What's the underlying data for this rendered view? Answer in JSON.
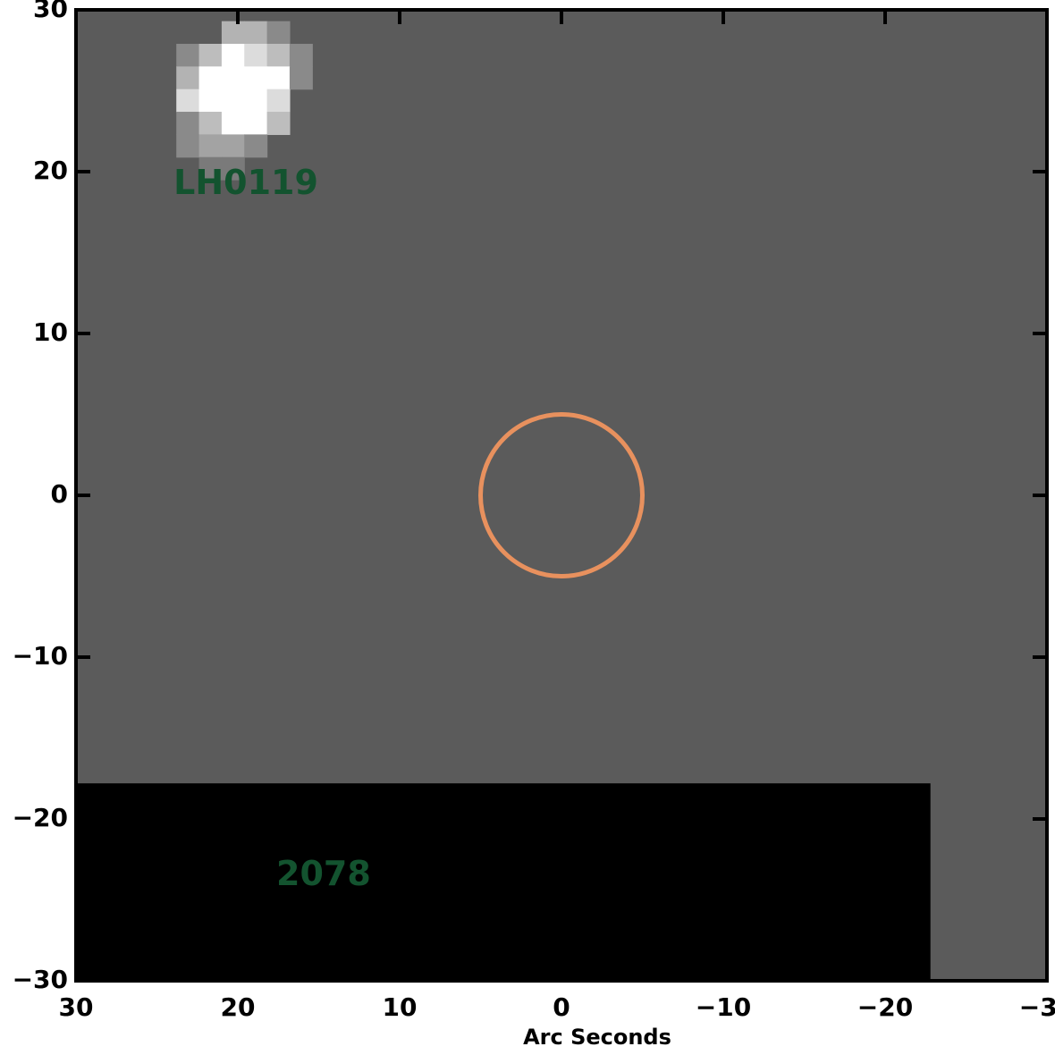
{
  "chart_data": {
    "type": "heatmap",
    "title": "",
    "xlabel": "Arc Seconds",
    "ylabel": "",
    "xlim": [
      30,
      -30
    ],
    "ylim": [
      -30,
      30
    ],
    "x_ticks": [
      30,
      20,
      10,
      0,
      -10,
      -20,
      -30
    ],
    "x_tick_labels": [
      "30",
      "20",
      "10",
      "0",
      "−10",
      "−20",
      "−30"
    ],
    "y_ticks": [
      30,
      20,
      10,
      0,
      -10,
      -20,
      -30
    ],
    "y_tick_labels": [
      "30",
      "20",
      "10",
      "0",
      "−10",
      "−20",
      "−30"
    ],
    "background_value_color": "#5b5b5b",
    "no_data_region": {
      "x": [
        30,
        -22.8
      ],
      "y": [
        -30,
        -17.8
      ],
      "color": "#000000"
    },
    "pixel_size_arcsec": 1.4,
    "source_pixels": [
      {
        "x": 20.3,
        "y": 28.6,
        "color": "#b3b3b3"
      },
      {
        "x": 18.9,
        "y": 28.6,
        "color": "#b3b3b3"
      },
      {
        "x": 17.5,
        "y": 28.6,
        "color": "#8a8a8a"
      },
      {
        "x": 23.1,
        "y": 27.2,
        "color": "#8a8a8a"
      },
      {
        "x": 21.7,
        "y": 27.2,
        "color": "#bdbdbd"
      },
      {
        "x": 20.3,
        "y": 27.2,
        "color": "#ffffff"
      },
      {
        "x": 18.9,
        "y": 27.2,
        "color": "#dcdcdc"
      },
      {
        "x": 17.5,
        "y": 27.2,
        "color": "#bdbdbd"
      },
      {
        "x": 16.1,
        "y": 27.2,
        "color": "#8a8a8a"
      },
      {
        "x": 23.1,
        "y": 25.8,
        "color": "#b3b3b3"
      },
      {
        "x": 21.7,
        "y": 25.8,
        "color": "#ffffff"
      },
      {
        "x": 20.3,
        "y": 25.8,
        "color": "#ffffff"
      },
      {
        "x": 18.9,
        "y": 25.8,
        "color": "#ffffff"
      },
      {
        "x": 17.5,
        "y": 25.8,
        "color": "#ffffff"
      },
      {
        "x": 16.1,
        "y": 25.8,
        "color": "#8a8a8a"
      },
      {
        "x": 23.1,
        "y": 24.4,
        "color": "#dcdcdc"
      },
      {
        "x": 21.7,
        "y": 24.4,
        "color": "#ffffff"
      },
      {
        "x": 20.3,
        "y": 24.4,
        "color": "#ffffff"
      },
      {
        "x": 18.9,
        "y": 24.4,
        "color": "#ffffff"
      },
      {
        "x": 17.5,
        "y": 24.4,
        "color": "#dcdcdc"
      },
      {
        "x": 23.1,
        "y": 23.0,
        "color": "#8a8a8a"
      },
      {
        "x": 21.7,
        "y": 23.0,
        "color": "#bdbdbd"
      },
      {
        "x": 20.3,
        "y": 23.0,
        "color": "#ffffff"
      },
      {
        "x": 18.9,
        "y": 23.0,
        "color": "#ffffff"
      },
      {
        "x": 17.5,
        "y": 23.0,
        "color": "#bdbdbd"
      },
      {
        "x": 23.1,
        "y": 21.6,
        "color": "#8a8a8a"
      },
      {
        "x": 21.7,
        "y": 21.6,
        "color": "#a3a3a3"
      },
      {
        "x": 20.3,
        "y": 21.6,
        "color": "#a3a3a3"
      },
      {
        "x": 18.9,
        "y": 21.6,
        "color": "#8a8a8a"
      },
      {
        "x": 21.7,
        "y": 20.2,
        "color": "#7a7a7a"
      },
      {
        "x": 20.3,
        "y": 20.2,
        "color": "#7a7a7a"
      }
    ],
    "circle": {
      "center": [
        0,
        0
      ],
      "radius": 5,
      "color": "#e8915e"
    },
    "annotations": [
      {
        "text": "LH0119",
        "x": 19.5,
        "y": 19.2,
        "color": "#13532f"
      },
      {
        "text": "2078",
        "x": 14.7,
        "y": -23.5,
        "color": "#13532f"
      }
    ]
  }
}
